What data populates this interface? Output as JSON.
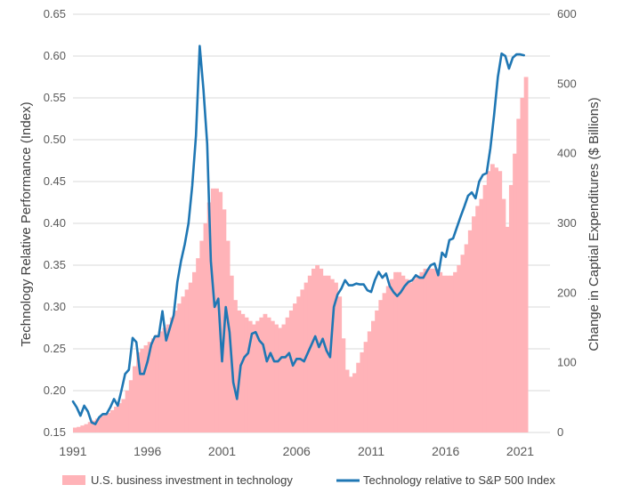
{
  "chart_data": {
    "type": "bar+line",
    "x_tick_labels": [
      "1991",
      "1996",
      "2001",
      "2006",
      "2011",
      "2016",
      "2021"
    ],
    "x_tick_years": [
      1991,
      1996,
      2001,
      2006,
      2011,
      2016,
      2021
    ],
    "xlim": [
      1991,
      2023
    ],
    "left_axis": {
      "label": "Technology Relative Performance (Index)",
      "lim": [
        0.15,
        0.65
      ],
      "ticks": [
        "0.15",
        "0.20",
        "0.25",
        "0.30",
        "0.35",
        "0.40",
        "0.45",
        "0.50",
        "0.55",
        "0.60",
        "0.65"
      ]
    },
    "right_axis": {
      "label": "Change in Captial Expenditures ($ Billions)",
      "lim": [
        0,
        600
      ],
      "ticks": [
        "0",
        "100",
        "200",
        "300",
        "400",
        "500",
        "600"
      ]
    },
    "grid": true,
    "legend_position": "bottom",
    "series": [
      {
        "name": "U.S. business investment in technology",
        "type": "bar",
        "axis": "right",
        "color": "#ffb3b8",
        "x": [
          1991.0,
          1991.25,
          1991.5,
          1991.75,
          1992.0,
          1992.25,
          1992.5,
          1992.75,
          1993.0,
          1993.25,
          1993.5,
          1993.75,
          1994.0,
          1994.25,
          1994.5,
          1994.75,
          1995.0,
          1995.25,
          1995.5,
          1995.75,
          1996.0,
          1996.25,
          1996.5,
          1996.75,
          1997.0,
          1997.25,
          1997.5,
          1997.75,
          1998.0,
          1998.25,
          1998.5,
          1998.75,
          1999.0,
          1999.25,
          1999.5,
          1999.75,
          2000.0,
          2000.25,
          2000.5,
          2000.75,
          2001.0,
          2001.25,
          2001.5,
          2001.75,
          2002.0,
          2002.25,
          2002.5,
          2002.75,
          2003.0,
          2003.25,
          2003.5,
          2003.75,
          2004.0,
          2004.25,
          2004.5,
          2004.75,
          2005.0,
          2005.25,
          2005.5,
          2005.75,
          2006.0,
          2006.25,
          2006.5,
          2006.75,
          2007.0,
          2007.25,
          2007.5,
          2007.75,
          2008.0,
          2008.25,
          2008.5,
          2008.75,
          2009.0,
          2009.25,
          2009.5,
          2009.75,
          2010.0,
          2010.25,
          2010.5,
          2010.75,
          2011.0,
          2011.25,
          2011.5,
          2011.75,
          2012.0,
          2012.25,
          2012.5,
          2012.75,
          2013.0,
          2013.25,
          2013.5,
          2013.75,
          2014.0,
          2014.25,
          2014.5,
          2014.75,
          2015.0,
          2015.25,
          2015.5,
          2015.75,
          2016.0,
          2016.25,
          2016.5,
          2016.75,
          2017.0,
          2017.25,
          2017.5,
          2017.75,
          2018.0,
          2018.25,
          2018.5,
          2018.75,
          2019.0,
          2019.25,
          2019.5,
          2019.75,
          2020.0,
          2020.25,
          2020.5,
          2020.75,
          2021.0,
          2021.25
        ],
        "values": [
          7,
          8,
          10,
          12,
          15,
          17,
          20,
          23,
          25,
          28,
          32,
          37,
          42,
          48,
          60,
          75,
          95,
          115,
          120,
          125,
          130,
          135,
          140,
          145,
          150,
          155,
          165,
          175,
          185,
          195,
          205,
          215,
          230,
          250,
          275,
          300,
          330,
          350,
          350,
          345,
          320,
          275,
          225,
          190,
          175,
          170,
          165,
          160,
          155,
          160,
          165,
          170,
          165,
          160,
          155,
          150,
          155,
          165,
          175,
          185,
          195,
          205,
          215,
          225,
          235,
          240,
          235,
          225,
          225,
          220,
          215,
          195,
          135,
          90,
          80,
          85,
          100,
          115,
          130,
          145,
          160,
          175,
          190,
          200,
          210,
          220,
          230,
          230,
          225,
          220,
          215,
          220,
          225,
          230,
          235,
          235,
          235,
          235,
          230,
          225,
          225,
          225,
          230,
          240,
          255,
          270,
          290,
          310,
          325,
          335,
          355,
          375,
          385,
          380,
          375,
          335,
          295,
          355,
          400,
          450,
          480,
          510
        ]
      },
      {
        "name": "Technology relative to S&P 500 Index",
        "type": "line",
        "axis": "left",
        "color": "#1f77b4",
        "x": [
          1991.0,
          1991.25,
          1991.5,
          1991.75,
          1992.0,
          1992.25,
          1992.5,
          1992.75,
          1993.0,
          1993.25,
          1993.5,
          1993.75,
          1994.0,
          1994.25,
          1994.5,
          1994.75,
          1995.0,
          1995.25,
          1995.5,
          1995.75,
          1996.0,
          1996.25,
          1996.5,
          1996.75,
          1997.0,
          1997.25,
          1997.5,
          1997.75,
          1998.0,
          1998.25,
          1998.5,
          1998.75,
          1999.0,
          1999.25,
          1999.5,
          1999.75,
          2000.0,
          2000.25,
          2000.5,
          2000.75,
          2001.0,
          2001.25,
          2001.5,
          2001.75,
          2002.0,
          2002.25,
          2002.5,
          2002.75,
          2003.0,
          2003.25,
          2003.5,
          2003.75,
          2004.0,
          2004.25,
          2004.5,
          2004.75,
          2005.0,
          2005.25,
          2005.5,
          2005.75,
          2006.0,
          2006.25,
          2006.5,
          2006.75,
          2007.0,
          2007.25,
          2007.5,
          2007.75,
          2008.0,
          2008.25,
          2008.5,
          2008.75,
          2009.0,
          2009.25,
          2009.5,
          2009.75,
          2010.0,
          2010.25,
          2010.5,
          2010.75,
          2011.0,
          2011.25,
          2011.5,
          2011.75,
          2012.0,
          2012.25,
          2012.5,
          2012.75,
          2013.0,
          2013.25,
          2013.5,
          2013.75,
          2014.0,
          2014.25,
          2014.5,
          2014.75,
          2015.0,
          2015.25,
          2015.5,
          2015.75,
          2016.0,
          2016.25,
          2016.5,
          2016.75,
          2017.0,
          2017.25,
          2017.5,
          2017.75,
          2018.0,
          2018.25,
          2018.5,
          2018.75,
          2019.0,
          2019.25,
          2019.5,
          2019.75,
          2020.0,
          2020.25,
          2020.5,
          2020.75,
          2021.0,
          2021.25
        ],
        "values": [
          0.187,
          0.18,
          0.17,
          0.182,
          0.175,
          0.162,
          0.16,
          0.168,
          0.172,
          0.172,
          0.18,
          0.19,
          0.182,
          0.2,
          0.22,
          0.225,
          0.263,
          0.258,
          0.22,
          0.22,
          0.235,
          0.255,
          0.265,
          0.265,
          0.295,
          0.26,
          0.275,
          0.29,
          0.33,
          0.355,
          0.375,
          0.4,
          0.445,
          0.505,
          0.612,
          0.56,
          0.495,
          0.355,
          0.3,
          0.31,
          0.235,
          0.3,
          0.27,
          0.21,
          0.19,
          0.23,
          0.24,
          0.245,
          0.268,
          0.27,
          0.26,
          0.255,
          0.235,
          0.245,
          0.235,
          0.235,
          0.24,
          0.24,
          0.245,
          0.23,
          0.238,
          0.238,
          0.235,
          0.245,
          0.255,
          0.265,
          0.252,
          0.262,
          0.248,
          0.24,
          0.3,
          0.315,
          0.322,
          0.332,
          0.326,
          0.326,
          0.328,
          0.327,
          0.327,
          0.32,
          0.318,
          0.332,
          0.342,
          0.335,
          0.34,
          0.325,
          0.318,
          0.313,
          0.318,
          0.325,
          0.33,
          0.332,
          0.338,
          0.335,
          0.335,
          0.343,
          0.35,
          0.352,
          0.338,
          0.365,
          0.36,
          0.38,
          0.382,
          0.395,
          0.408,
          0.42,
          0.433,
          0.437,
          0.43,
          0.45,
          0.458,
          0.46,
          0.49,
          0.53,
          0.575,
          0.603,
          0.6,
          0.585,
          0.598,
          0.602,
          0.602,
          0.601
        ]
      }
    ]
  }
}
